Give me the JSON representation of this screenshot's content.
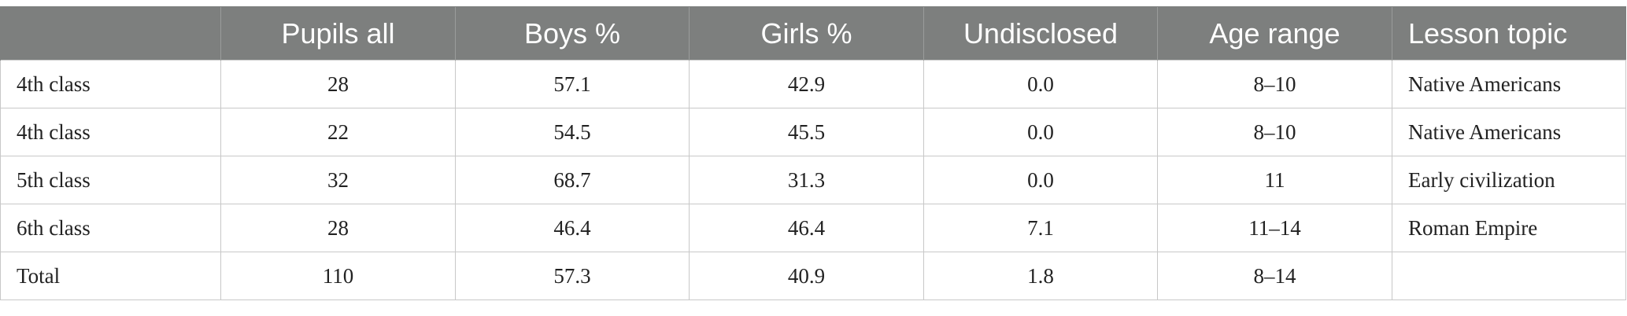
{
  "table": {
    "headers": [
      "",
      "Pupils all",
      "Boys %",
      "Girls %",
      "Undisclosed",
      "Age range",
      "Lesson topic"
    ],
    "rows": [
      [
        "4th class",
        "28",
        "57.1",
        "42.9",
        "0.0",
        "8–10",
        "Native Americans"
      ],
      [
        "4th class",
        "22",
        "54.5",
        "45.5",
        "0.0",
        "8–10",
        "Native Americans"
      ],
      [
        "5th class",
        "32",
        "68.7",
        "31.3",
        "0.0",
        "11",
        "Early civilization"
      ],
      [
        "6th class",
        "28",
        "46.4",
        "46.4",
        "7.1",
        "11–14",
        "Roman Empire"
      ],
      [
        "Total",
        "110",
        "57.3",
        "40.9",
        "1.8",
        "8–14",
        ""
      ]
    ]
  }
}
